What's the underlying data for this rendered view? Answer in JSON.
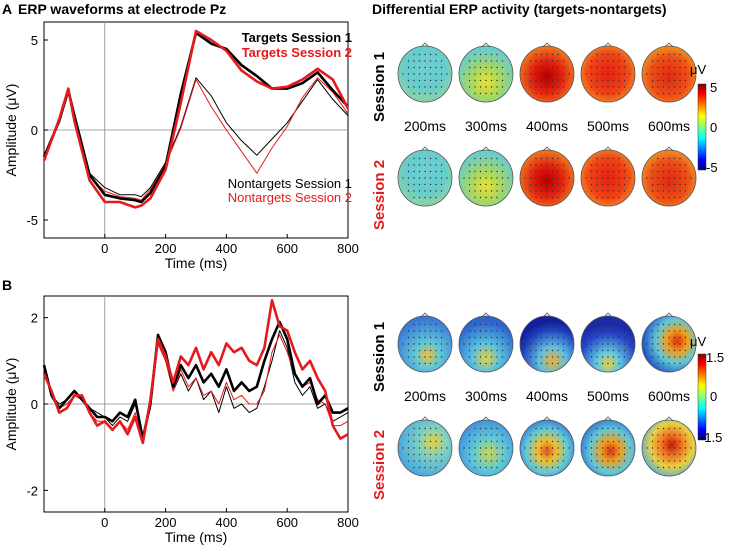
{
  "panel_a": {
    "letter": "A",
    "title": "ERP waveforms at electrode Pz",
    "xlabel": "Time (ms)",
    "ylabel": "Amplitude (μV)",
    "xticks": [
      "0",
      "200",
      "400",
      "600",
      "800"
    ],
    "yticks": [
      "5",
      "0",
      "-5"
    ],
    "legend": {
      "targets_s1": "Targets Session 1",
      "targets_s2": "Targets Session 2",
      "nontargets_s1": "Nontargets Session 1",
      "nontargets_s2": "Nontargets Session 2"
    }
  },
  "panel_b": {
    "letter": "B",
    "xlabel": "Time (ms)",
    "ylabel": "Amplitude (μV)",
    "xticks": [
      "0",
      "200",
      "400",
      "600",
      "800"
    ],
    "yticks": [
      "2",
      "0",
      "-2"
    ]
  },
  "topo": {
    "title": "Differential ERP activity (targets-nontargets)",
    "session1_label": "Session 1",
    "session2_label": "Session 2",
    "times": [
      "200ms",
      "300ms",
      "400ms",
      "500ms",
      "600ms"
    ],
    "top_colorbar": {
      "unit": "μV",
      "ticks": [
        "5",
        "0",
        "-5"
      ]
    },
    "bottom_colorbar": {
      "unit": "μV",
      "ticks": [
        "1.5",
        "0",
        "-1.5"
      ]
    },
    "colors": {
      "session1": "#000000",
      "session2": "#e41a1c"
    }
  },
  "chart_data": [
    {
      "type": "line",
      "title": "ERP waveforms at electrode Pz",
      "xlabel": "Time (ms)",
      "ylabel": "Amplitude (μV)",
      "xlim": [
        -200,
        800
      ],
      "ylim": [
        -6,
        6
      ],
      "x": [
        -200,
        -150,
        -120,
        -100,
        -50,
        0,
        50,
        100,
        120,
        150,
        200,
        250,
        300,
        350,
        400,
        450,
        500,
        550,
        600,
        650,
        700,
        750,
        800
      ],
      "series": [
        {
          "name": "Targets Session 1",
          "color": "#000000",
          "width": 2.6,
          "values": [
            -1.5,
            0.5,
            2.2,
            0.8,
            -2.5,
            -3.6,
            -3.8,
            -3.9,
            -4.0,
            -3.5,
            -2.0,
            2.0,
            5.4,
            4.8,
            4.5,
            3.6,
            3.0,
            2.3,
            2.3,
            2.6,
            3.2,
            2.2,
            1.3
          ]
        },
        {
          "name": "Targets Session 2",
          "color": "#e41a1c",
          "width": 2.6,
          "values": [
            -1.7,
            0.6,
            2.3,
            0.5,
            -2.8,
            -4.0,
            -4.0,
            -4.3,
            -4.2,
            -3.8,
            -2.2,
            1.5,
            5.5,
            5.0,
            4.4,
            3.3,
            2.7,
            2.3,
            2.4,
            2.8,
            3.4,
            2.8,
            1.2
          ]
        },
        {
          "name": "Nontargets Session 1",
          "color": "#000000",
          "width": 1.0,
          "values": [
            -1.6,
            0.6,
            2.1,
            0.7,
            -2.4,
            -3.2,
            -3.6,
            -3.6,
            -3.7,
            -3.2,
            -1.8,
            0.2,
            2.9,
            1.9,
            0.4,
            -0.6,
            -1.4,
            -0.5,
            0.4,
            1.6,
            2.8,
            1.7,
            0.8
          ]
        },
        {
          "name": "Nontargets Session 2",
          "color": "#e41a1c",
          "width": 1.0,
          "values": [
            -1.8,
            0.5,
            2.2,
            0.6,
            -2.6,
            -3.4,
            -3.7,
            -3.8,
            -3.9,
            -3.3,
            -1.9,
            0.1,
            2.8,
            1.3,
            0.0,
            -1.2,
            -2.4,
            -1.0,
            0.2,
            1.8,
            2.9,
            2.1,
            0.9
          ]
        }
      ]
    },
    {
      "type": "line",
      "xlabel": "Time (ms)",
      "ylabel": "Amplitude (μV)",
      "xlim": [
        -200,
        800
      ],
      "ylim": [
        -2.5,
        2.5
      ],
      "x": [
        -200,
        -175,
        -150,
        -125,
        -100,
        -75,
        -50,
        -25,
        0,
        25,
        50,
        75,
        100,
        125,
        150,
        175,
        200,
        225,
        250,
        275,
        300,
        325,
        350,
        375,
        400,
        425,
        450,
        475,
        500,
        525,
        550,
        575,
        600,
        625,
        650,
        675,
        700,
        725,
        750,
        775,
        800
      ],
      "series": [
        {
          "name": "Targets Session 1",
          "color": "#000000",
          "width": 2.6,
          "values": [
            0.9,
            0.2,
            -0.1,
            0.1,
            0.3,
            0.1,
            -0.1,
            -0.3,
            -0.3,
            -0.4,
            -0.2,
            -0.3,
            0.1,
            -0.8,
            0.0,
            1.6,
            1.2,
            0.4,
            0.9,
            0.6,
            0.9,
            0.5,
            0.7,
            0.4,
            0.8,
            0.3,
            0.5,
            0.3,
            0.4,
            1.0,
            1.5,
            1.9,
            1.5,
            0.7,
            0.4,
            0.6,
            0.0,
            0.2,
            -0.2,
            -0.2,
            -0.1
          ]
        },
        {
          "name": "Targets Session 2",
          "color": "#e41a1c",
          "width": 2.6,
          "values": [
            0.7,
            0.3,
            -0.2,
            -0.1,
            0.2,
            0.2,
            -0.2,
            -0.5,
            -0.4,
            -0.6,
            -0.4,
            -0.7,
            -0.3,
            -0.9,
            0.1,
            1.5,
            1.1,
            0.5,
            1.1,
            0.9,
            1.3,
            0.8,
            1.2,
            0.9,
            1.4,
            1.2,
            1.3,
            1.0,
            0.9,
            1.3,
            2.4,
            1.8,
            1.7,
            1.2,
            0.8,
            1.0,
            0.6,
            0.3,
            -0.5,
            -0.8,
            -0.7
          ]
        },
        {
          "name": "Nontargets Session 1",
          "color": "#000000",
          "width": 1.0,
          "values": [
            0.9,
            0.2,
            0.0,
            0.1,
            0.3,
            0.1,
            -0.1,
            -0.2,
            -0.3,
            -0.5,
            -0.3,
            -0.4,
            0.0,
            -0.8,
            -0.1,
            1.4,
            1.0,
            0.3,
            0.7,
            0.3,
            0.6,
            0.1,
            0.3,
            -0.2,
            0.4,
            -0.1,
            0.0,
            -0.2,
            -0.1,
            0.4,
            1.0,
            1.7,
            1.3,
            0.5,
            0.2,
            0.4,
            -0.1,
            0.0,
            -0.4,
            -0.3,
            -0.2
          ]
        },
        {
          "name": "Nontargets Session 2",
          "color": "#e41a1c",
          "width": 1.0,
          "values": [
            0.8,
            0.3,
            -0.1,
            0.0,
            0.2,
            0.1,
            -0.2,
            -0.4,
            -0.4,
            -0.6,
            -0.4,
            -0.6,
            -0.2,
            -0.8,
            0.0,
            1.4,
            1.0,
            0.3,
            0.8,
            0.4,
            0.6,
            0.2,
            0.3,
            0.0,
            0.5,
            0.1,
            0.2,
            0.0,
            0.0,
            0.3,
            1.2,
            1.6,
            1.2,
            0.7,
            0.4,
            0.5,
            0.1,
            0.0,
            -0.5,
            -0.5,
            -0.4
          ]
        }
      ]
    }
  ]
}
